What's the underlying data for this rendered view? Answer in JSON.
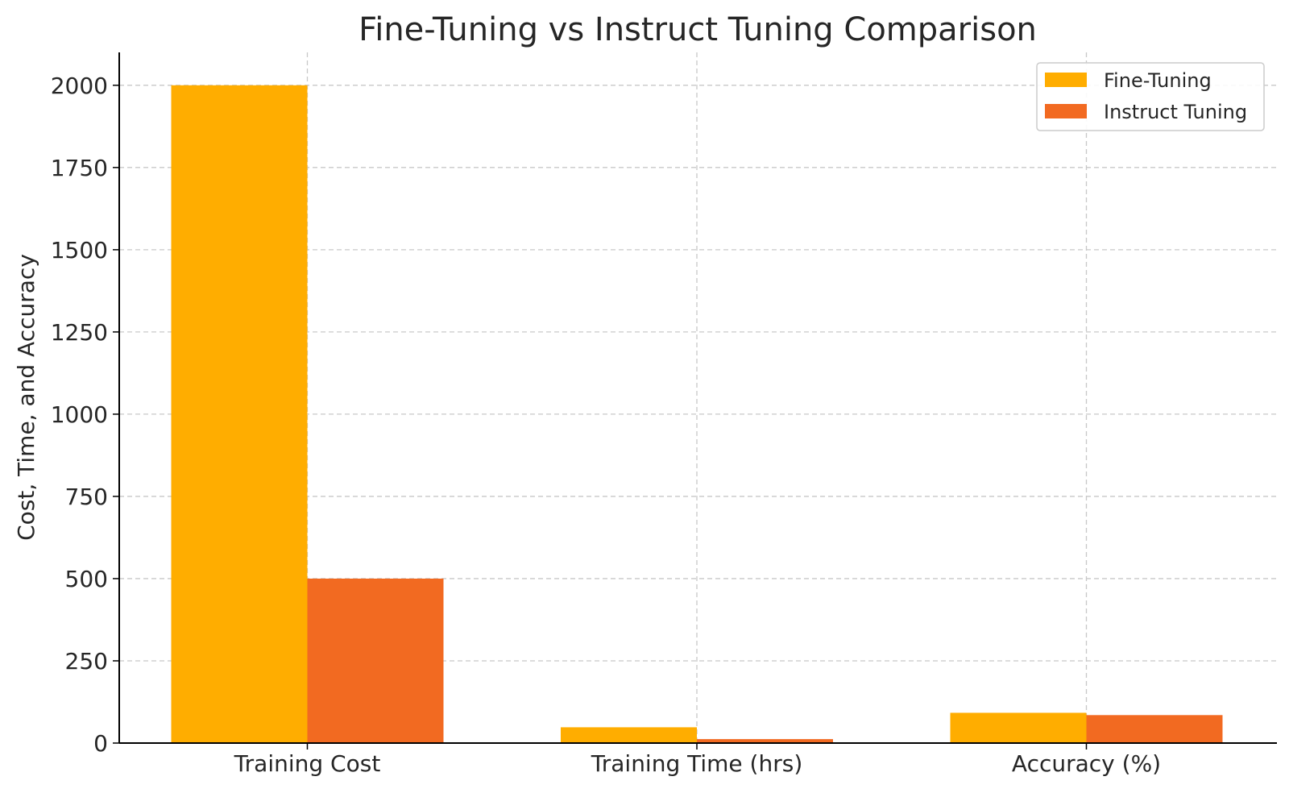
{
  "chart_data": {
    "type": "bar",
    "title": "Fine-Tuning vs Instruct Tuning Comparison",
    "xlabel": "",
    "ylabel": "Cost, Time, and Accuracy",
    "categories": [
      "Training Cost",
      "Training Time (hrs)",
      "Accuracy (%)"
    ],
    "series": [
      {
        "name": "Fine-Tuning",
        "values": [
          2000,
          48,
          92
        ],
        "color": "#FFAD00"
      },
      {
        "name": "Instruct Tuning",
        "values": [
          500,
          12,
          85
        ],
        "color": "#F26A21"
      }
    ],
    "ylim": [
      0,
      2100
    ],
    "yticks": [
      0,
      250,
      500,
      750,
      1000,
      1250,
      1500,
      1750,
      2000
    ],
    "grid": true,
    "legend_position": "top-right"
  }
}
